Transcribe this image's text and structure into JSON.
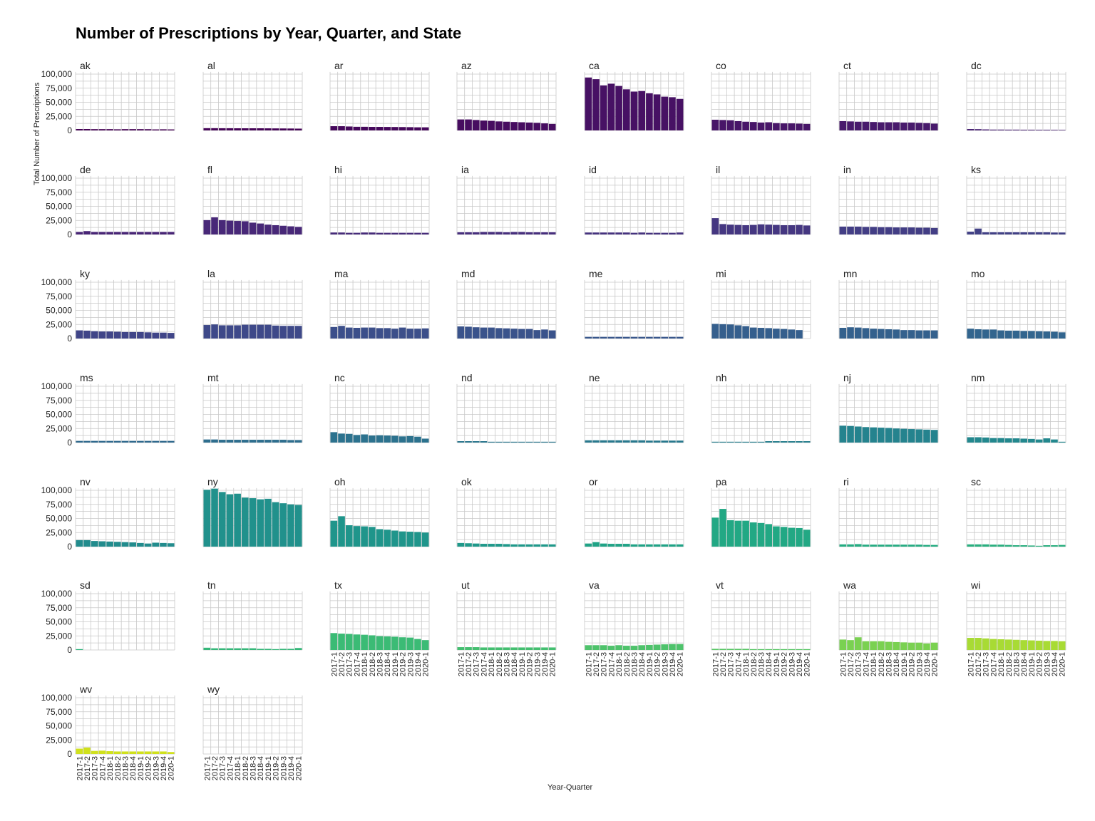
{
  "chart_data": {
    "type": "bar",
    "title": "Number of Prescriptions by Year, Quarter, and State",
    "xlabel": "Year-Quarter",
    "ylabel": "Total Number of Prescriptions",
    "ylim": [
      0,
      100000
    ],
    "yticks": [
      "0",
      "25,000",
      "50,000",
      "75,000",
      "100,000"
    ],
    "categories": [
      "2017-1",
      "2017-2",
      "2017-3",
      "2017-4",
      "2018-1",
      "2018-2",
      "2018-3",
      "2018-4",
      "2019-1",
      "2019-2",
      "2019-3",
      "2019-4",
      "2020-1"
    ],
    "grid": true,
    "legend": "none",
    "facets": [
      {
        "state": "ak",
        "color": "#440154",
        "values": [
          2500,
          2500,
          2300,
          2300,
          2300,
          2000,
          2300,
          2300,
          2300,
          2200,
          1800,
          2000,
          1800
        ]
      },
      {
        "state": "al",
        "color": "#450457",
        "values": [
          4000,
          4000,
          3900,
          3900,
          3800,
          3800,
          3800,
          3800,
          3700,
          3600,
          3500,
          3400,
          3200
        ]
      },
      {
        "state": "ar",
        "color": "#46085c",
        "values": [
          7500,
          7500,
          7000,
          6500,
          6500,
          6300,
          6300,
          6200,
          6100,
          6000,
          5800,
          5500,
          5500
        ]
      },
      {
        "state": "az",
        "color": "#470d60",
        "values": [
          19500,
          19500,
          18500,
          17500,
          17000,
          16000,
          15500,
          15000,
          14500,
          14000,
          13500,
          12500,
          11500
        ]
      },
      {
        "state": "ca",
        "color": "#471164",
        "values": [
          94000,
          91000,
          80000,
          83000,
          79000,
          73000,
          69000,
          70000,
          66000,
          64000,
          60000,
          59000,
          56000
        ]
      },
      {
        "state": "co",
        "color": "#481668",
        "values": [
          19000,
          18500,
          18000,
          16500,
          15500,
          15000,
          14000,
          14500,
          13000,
          12500,
          12500,
          12000,
          11500
        ]
      },
      {
        "state": "ct",
        "color": "#481a6c",
        "values": [
          16500,
          16000,
          15500,
          15500,
          15000,
          14500,
          14500,
          14500,
          14000,
          14000,
          13500,
          13000,
          12000
        ]
      },
      {
        "state": "dc",
        "color": "#482173",
        "values": [
          2500,
          2300,
          1800,
          1500,
          1500,
          1400,
          1400,
          1300,
          1300,
          1200,
          1200,
          1100,
          1000
        ]
      },
      {
        "state": "de",
        "color": "#482576",
        "values": [
          4500,
          6000,
          4500,
          4500,
          4500,
          4500,
          4500,
          4500,
          4500,
          4500,
          4500,
          4500,
          4500
        ]
      },
      {
        "state": "fl",
        "color": "#482878",
        "values": [
          25500,
          30500,
          25500,
          24500,
          24000,
          23500,
          21000,
          19500,
          17500,
          16500,
          15500,
          14500,
          13500
        ]
      },
      {
        "state": "hi",
        "color": "#472c7a",
        "values": [
          3500,
          3500,
          3000,
          3000,
          3500,
          3500,
          3000,
          3000,
          3000,
          3000,
          3000,
          3000,
          3000
        ]
      },
      {
        "state": "ia",
        "color": "#472f7d",
        "values": [
          4000,
          4000,
          4000,
          4500,
          4500,
          4500,
          4000,
          4500,
          4500,
          4000,
          4000,
          4000,
          4000
        ]
      },
      {
        "state": "id",
        "color": "#46337f",
        "values": [
          3500,
          3500,
          3500,
          3500,
          3500,
          3500,
          3000,
          3500,
          3000,
          3000,
          3000,
          3000,
          3500
        ]
      },
      {
        "state": "il",
        "color": "#453781",
        "values": [
          29000,
          18500,
          17500,
          17000,
          16500,
          17000,
          18000,
          17500,
          17000,
          16500,
          16500,
          17000,
          16000
        ]
      },
      {
        "state": "in",
        "color": "#433e85",
        "values": [
          14000,
          14000,
          14000,
          13500,
          13500,
          13000,
          13000,
          12500,
          12500,
          12500,
          12000,
          12000,
          11500
        ]
      },
      {
        "state": "ks",
        "color": "#424186",
        "values": [
          5000,
          10500,
          4000,
          4000,
          4000,
          4000,
          4000,
          4000,
          4000,
          4000,
          4000,
          3500,
          3500
        ]
      },
      {
        "state": "ky",
        "color": "#404588",
        "values": [
          14500,
          14000,
          13000,
          12500,
          12500,
          12000,
          11500,
          11500,
          11500,
          11000,
          10500,
          10500,
          10000
        ]
      },
      {
        "state": "la",
        "color": "#3e4989",
        "values": [
          24000,
          25000,
          23500,
          23500,
          23500,
          24500,
          24500,
          24500,
          24500,
          23000,
          22500,
          22500,
          22500
        ]
      },
      {
        "state": "ma",
        "color": "#3c4f8a",
        "values": [
          20500,
          22500,
          19500,
          19000,
          19500,
          19500,
          18500,
          18500,
          17500,
          19500,
          17500,
          17500,
          18000
        ]
      },
      {
        "state": "md",
        "color": "#3a538b",
        "values": [
          21500,
          21000,
          20000,
          19500,
          19500,
          18500,
          18000,
          17500,
          17000,
          17000,
          15000,
          16000,
          14500
        ]
      },
      {
        "state": "me",
        "color": "#38578c",
        "values": [
          3000,
          3000,
          3000,
          3000,
          3000,
          3000,
          3000,
          3000,
          3000,
          3000,
          3000,
          3000,
          3000
        ]
      },
      {
        "state": "mi",
        "color": "#355f8d",
        "values": [
          26000,
          25500,
          25000,
          23500,
          22000,
          19500,
          19000,
          18500,
          17500,
          17000,
          16000,
          15000,
          0
        ]
      },
      {
        "state": "mn",
        "color": "#34618d",
        "values": [
          19000,
          20000,
          19500,
          18500,
          17500,
          17000,
          16500,
          16000,
          15000,
          15000,
          14500,
          14500,
          14500
        ]
      },
      {
        "state": "mo",
        "color": "#32658e",
        "values": [
          17500,
          16500,
          16000,
          16000,
          14500,
          14000,
          14000,
          13500,
          13500,
          13000,
          12500,
          12000,
          11000
        ]
      },
      {
        "state": "ms",
        "color": "#306a8e",
        "values": [
          3000,
          3000,
          3000,
          3000,
          3000,
          3000,
          3000,
          3000,
          3000,
          3000,
          3000,
          3000,
          3000
        ]
      },
      {
        "state": "mt",
        "color": "#2e6e8e",
        "values": [
          5500,
          5500,
          5000,
          5000,
          5000,
          5000,
          5000,
          5000,
          5000,
          5000,
          5000,
          4500,
          4500
        ]
      },
      {
        "state": "nc",
        "color": "#2c728e",
        "values": [
          18500,
          16000,
          15500,
          13500,
          14500,
          12500,
          13000,
          12500,
          12000,
          11000,
          11500,
          10500,
          7000
        ]
      },
      {
        "state": "nd",
        "color": "#2a768e",
        "values": [
          2500,
          2500,
          2500,
          2500,
          1500,
          1500,
          1500,
          1500,
          1500,
          1500,
          1500,
          1500,
          1500
        ]
      },
      {
        "state": "ne",
        "color": "#29798e",
        "values": [
          4000,
          4000,
          4000,
          4000,
          4000,
          4000,
          4000,
          4000,
          3500,
          3500,
          3500,
          3500,
          3500
        ]
      },
      {
        "state": "nh",
        "color": "#277f8e",
        "values": [
          1500,
          1500,
          1500,
          1500,
          1500,
          1500,
          1500,
          2500,
          2500,
          2500,
          2500,
          2500,
          2500
        ]
      },
      {
        "state": "nj",
        "color": "#25838e",
        "values": [
          30000,
          29500,
          28500,
          27500,
          27000,
          26500,
          26000,
          25000,
          24500,
          24000,
          23500,
          23000,
          22500
        ]
      },
      {
        "state": "nm",
        "color": "#23888e",
        "values": [
          9500,
          9500,
          9000,
          8000,
          8000,
          7500,
          7500,
          7000,
          6500,
          5500,
          7500,
          5500,
          1500
        ]
      },
      {
        "state": "nv",
        "color": "#228c8d",
        "values": [
          11500,
          11500,
          10000,
          9500,
          9000,
          8500,
          8000,
          7500,
          6500,
          5500,
          7000,
          6500,
          6000
        ]
      },
      {
        "state": "ny",
        "color": "#21918c",
        "values": [
          101000,
          103000,
          97000,
          93000,
          94000,
          87000,
          86000,
          84000,
          85000,
          79000,
          77000,
          75000,
          74000
        ]
      },
      {
        "state": "oh",
        "color": "#1f958b",
        "values": [
          46000,
          54000,
          38000,
          36500,
          36000,
          35000,
          31000,
          30000,
          28500,
          27000,
          26500,
          26000,
          25000
        ]
      },
      {
        "state": "ok",
        "color": "#1f998a",
        "values": [
          6500,
          6000,
          5500,
          5000,
          5000,
          5000,
          4500,
          4000,
          4000,
          4000,
          4000,
          4000,
          4000
        ]
      },
      {
        "state": "or",
        "color": "#20a386",
        "values": [
          5500,
          8000,
          5500,
          5000,
          5000,
          5000,
          4000,
          4000,
          4000,
          4000,
          4000,
          4000,
          4000
        ]
      },
      {
        "state": "pa",
        "color": "#22a884",
        "values": [
          51500,
          67000,
          47000,
          46000,
          46000,
          43000,
          42000,
          40000,
          36000,
          35000,
          33500,
          33000,
          30000
        ]
      },
      {
        "state": "ri",
        "color": "#25ac82",
        "values": [
          4000,
          4000,
          4500,
          3500,
          3500,
          3500,
          3500,
          3500,
          3500,
          3500,
          3500,
          3000,
          3000
        ]
      },
      {
        "state": "sc",
        "color": "#29af7f",
        "values": [
          4000,
          4000,
          4000,
          3500,
          3500,
          3000,
          2500,
          2500,
          2000,
          1500,
          2500,
          2500,
          3000
        ]
      },
      {
        "state": "sd",
        "color": "#2eb37c",
        "values": [
          1500,
          0,
          0,
          0,
          0,
          0,
          0,
          0,
          0,
          0,
          0,
          0,
          0
        ]
      },
      {
        "state": "tn",
        "color": "#35b779",
        "values": [
          4000,
          3000,
          3000,
          3000,
          3000,
          3000,
          3000,
          2000,
          2000,
          1500,
          2000,
          2000,
          3500
        ]
      },
      {
        "state": "tx",
        "color": "#3bbb75",
        "values": [
          30000,
          29000,
          28500,
          27500,
          27000,
          26000,
          24500,
          24000,
          23500,
          22500,
          22000,
          19500,
          17500
        ]
      },
      {
        "state": "ut",
        "color": "#44bf70",
        "values": [
          5000,
          5000,
          5000,
          4500,
          4500,
          4500,
          4500,
          4500,
          4500,
          4500,
          4500,
          4500,
          4500
        ]
      },
      {
        "state": "va",
        "color": "#4ec36b",
        "values": [
          8500,
          8500,
          8500,
          7500,
          8500,
          7500,
          7500,
          8500,
          9000,
          9500,
          10000,
          10500,
          10500
        ]
      },
      {
        "state": "vt",
        "color": "#58c765",
        "values": [
          2000,
          2000,
          2000,
          2000,
          2000,
          1500,
          1500,
          1500,
          1500,
          1500,
          1500,
          1500,
          1500
        ]
      },
      {
        "state": "wa",
        "color": "#7ad151",
        "values": [
          18500,
          17500,
          22500,
          15500,
          15500,
          15500,
          14500,
          14000,
          13500,
          13000,
          13000,
          11500,
          13000
        ]
      },
      {
        "state": "wi",
        "color": "#a8db34",
        "values": [
          21500,
          21500,
          20500,
          19500,
          19000,
          18500,
          18000,
          17500,
          17000,
          16500,
          16000,
          16000,
          15500
        ]
      },
      {
        "state": "wv",
        "color": "#d0e11c",
        "values": [
          9500,
          11500,
          5500,
          6000,
          5000,
          4500,
          4500,
          4500,
          4500,
          4500,
          4500,
          4500,
          3500
        ]
      },
      {
        "state": "wy",
        "color": "#fde725",
        "values": [
          0,
          0,
          0,
          0,
          0,
          0,
          0,
          0,
          0,
          0,
          0,
          0,
          0
        ]
      }
    ]
  }
}
